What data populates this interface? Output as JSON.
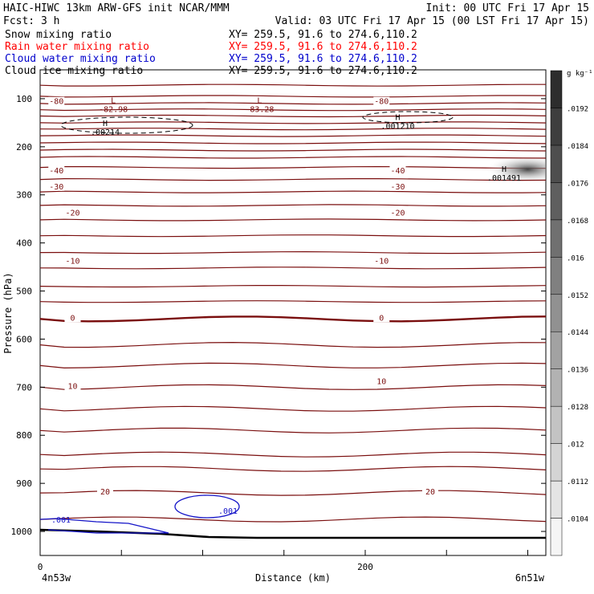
{
  "header": {
    "line1_left": "HAIC-HIWC 13km ARW-GFS init   NCAR/MMM",
    "line1_right": "Init: 00 UTC Fri 17 Apr 15",
    "line2_left": "Fcst:    3 h",
    "line2_right": "Valid: 03 UTC Fri 17 Apr 15 (00 LST Fri 17 Apr 15)"
  },
  "fields": [
    {
      "label": "Snow mixing ratio",
      "xy": "XY= 259.5, 91.6 to 274.6,110.2",
      "color": "#000000"
    },
    {
      "label": "Rain water mixing ratio",
      "xy": "XY= 259.5, 91.6 to 274.6,110.2",
      "color": "#ff0000"
    },
    {
      "label": "Cloud water mixing ratio",
      "xy": "XY= 259.5, 91.6 to 274.6,110.2",
      "color": "#0000cc"
    },
    {
      "label": "Cloud ice mixing ratio",
      "xy": "XY= 259.5, 91.6 to 274.6,110.2",
      "color": "#000000"
    }
  ],
  "colors": {
    "temperature_contour": "#7a0e0e",
    "cloud_water": "#1414c8",
    "ice": "#000000"
  },
  "chart_data": {
    "type": "contour",
    "xlabel": "Distance (km)",
    "ylabel": "Pressure (hPa)",
    "x_range": [
      0,
      250
    ],
    "y_range": [
      1050,
      40
    ],
    "x_ticks": [
      0,
      200
    ],
    "y_ticks": [
      100,
      200,
      300,
      400,
      500,
      600,
      700,
      800,
      900,
      1000
    ],
    "x_endpoints": {
      "left": "4n53w",
      "right": "6n51w"
    },
    "colorbar": {
      "units": "g kg⁻¹",
      "levels": [
        ".0104",
        ".0112",
        ".012",
        ".0128",
        ".0136",
        ".0144",
        ".0152",
        ".016",
        ".0168",
        ".0176",
        ".0184",
        ".0192"
      ]
    },
    "isotherm_pressures": [
      72,
      95,
      110,
      123,
      136,
      150,
      163,
      177,
      192,
      207,
      222,
      243,
      268,
      294,
      322,
      352,
      385,
      420,
      452,
      490,
      522,
      558,
      612,
      655,
      700,
      745,
      790,
      840,
      870,
      920,
      975
    ],
    "contour_labels": [
      {
        "text": "-80",
        "x": 10,
        "p": 108
      },
      {
        "text": "-80",
        "x": 210,
        "p": 108
      },
      {
        "text": "-40",
        "x": 10,
        "p": 252
      },
      {
        "text": "-40",
        "x": 220,
        "p": 252
      },
      {
        "text": "-30",
        "x": 10,
        "p": 285
      },
      {
        "text": "-30",
        "x": 220,
        "p": 285
      },
      {
        "text": "-20",
        "x": 20,
        "p": 340
      },
      {
        "text": "-20",
        "x": 220,
        "p": 340
      },
      {
        "text": "-10",
        "x": 20,
        "p": 440
      },
      {
        "text": "-10",
        "x": 210,
        "p": 440
      },
      {
        "text": "0",
        "x": 20,
        "p": 558
      },
      {
        "text": "0",
        "x": 210,
        "p": 558
      },
      {
        "text": "10",
        "x": 20,
        "p": 700
      },
      {
        "text": "10",
        "x": 210,
        "p": 690
      },
      {
        "text": "20",
        "x": 40,
        "p": 920
      },
      {
        "text": "20",
        "x": 240,
        "p": 920
      }
    ],
    "extrema": [
      {
        "kind": "L",
        "value": "-82.98",
        "x": 45,
        "p": 113
      },
      {
        "kind": "L",
        "value": "-83.28",
        "x": 135,
        "p": 113
      },
      {
        "kind": "H",
        "value": ".00214",
        "x": 40,
        "p": 160
      },
      {
        "kind": "H",
        "value": ".001210",
        "x": 220,
        "p": 148
      },
      {
        "kind": "H",
        "value": ".001491",
        "x": 280,
        "p": 255
      }
    ],
    "cloud_water_label": ".001"
  }
}
